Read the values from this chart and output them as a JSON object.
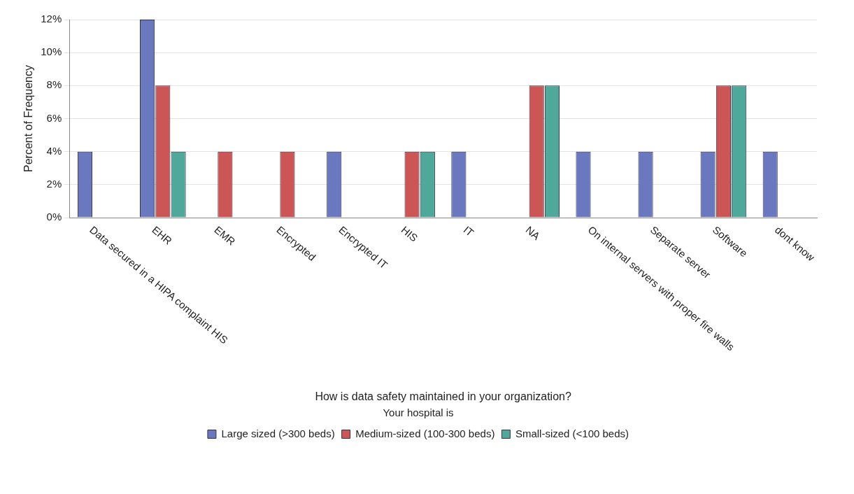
{
  "chart_data": {
    "type": "bar",
    "xlabel": "How is data safety maintained in your organization?",
    "ylabel": "Percent of Frequency",
    "legend_title": "Your hospital is",
    "legend": "bottom",
    "grid": "y",
    "categories": [
      "Data secured in a HIPA complaint HIS",
      "EHR",
      "EMR",
      "Encrypted",
      "Encrypted IT",
      "HIS",
      "IT",
      "NA",
      "On internal servers with proper fire walls",
      "Separate server",
      "Software",
      "dont know"
    ],
    "series": [
      {
        "name": "Large sized (>300 beds)",
        "color": "#6a78c0",
        "values": [
          4,
          12,
          null,
          null,
          4,
          null,
          4,
          null,
          4,
          4,
          4,
          4
        ]
      },
      {
        "name": "Medium-sized (100-300 beds)",
        "color": "#cc5555",
        "values": [
          null,
          8,
          4,
          4,
          null,
          4,
          null,
          8,
          null,
          null,
          8,
          null
        ]
      },
      {
        "name": "Small-sized (<100 beds)",
        "color": "#4fa89a",
        "values": [
          null,
          4,
          null,
          null,
          null,
          4,
          null,
          8,
          null,
          null,
          8,
          null
        ]
      }
    ],
    "ylim": [
      0,
      12
    ],
    "yticks": [
      {
        "value": 0,
        "label": "0%"
      },
      {
        "value": 2,
        "label": "2%"
      },
      {
        "value": 4,
        "label": "4%"
      },
      {
        "value": 6,
        "label": "6%"
      },
      {
        "value": 8,
        "label": "8%"
      },
      {
        "value": 10,
        "label": "10%"
      },
      {
        "value": 12,
        "label": "12%"
      }
    ]
  }
}
